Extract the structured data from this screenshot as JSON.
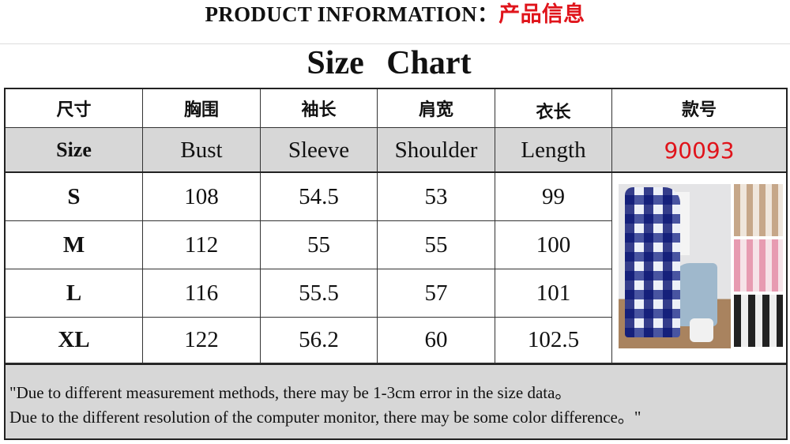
{
  "header": {
    "title_en": "PRODUCT INFORMATION：",
    "title_cn": "产品信息"
  },
  "chart_title": "Size Chart",
  "table": {
    "headers_cn": [
      "尺寸",
      "胸围",
      "袖长",
      "肩宽",
      "衣长",
      "款号"
    ],
    "headers_en": [
      "Size",
      "Bust",
      "Sleeve",
      "Shoulder",
      "Length"
    ],
    "style_number": "90093",
    "rows": [
      {
        "size": "S",
        "bust": "108",
        "sleeve": "54.5",
        "shoulder": "53",
        "length": "99"
      },
      {
        "size": "M",
        "bust": "112",
        "sleeve": "55",
        "shoulder": "55",
        "length": "100"
      },
      {
        "size": "L",
        "bust": "116",
        "sleeve": "55.5",
        "shoulder": "57",
        "length": "101"
      },
      {
        "size": "XL",
        "bust": "122",
        "sleeve": "56.2",
        "shoulder": "60",
        "length": "102.5"
      }
    ]
  },
  "notes": [
    "\"Due to different measurement methods, there may be 1-3cm error in the size data。",
    "Due to the different resolution of the computer monitor, there may be some color difference。\""
  ],
  "colors": {
    "accent_red": "#e0141b",
    "header_gray": "#d7d7d7"
  }
}
